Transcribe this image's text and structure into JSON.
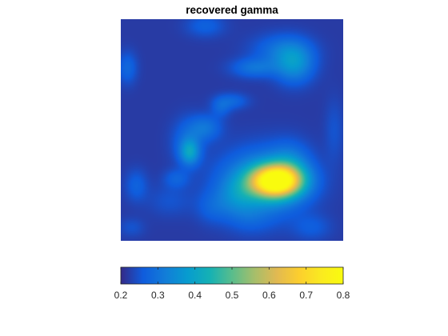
{
  "chart_data": {
    "type": "heatmap",
    "title": "recovered gamma",
    "xlabel": "",
    "ylabel": "",
    "axes_visible": false,
    "colormap": "parula",
    "clim": [
      0.2,
      0.8
    ],
    "grid": false,
    "colorbar": {
      "placement": "bottom",
      "ticks": [
        0.2,
        0.3,
        0.4,
        0.5,
        0.6,
        0.7,
        0.8
      ],
      "tick_labels": [
        "0.2",
        "0.3",
        "0.4",
        "0.5",
        "0.6",
        "0.7",
        "0.8"
      ]
    },
    "background_level": 0.22,
    "features": [
      {
        "x": 0.7,
        "y": 0.27,
        "sx": 0.08,
        "sy": 0.05,
        "amp": 0.56
      },
      {
        "x": 0.64,
        "y": 0.26,
        "sx": 0.13,
        "sy": 0.1,
        "amp": 0.16
      },
      {
        "x": 0.76,
        "y": 0.34,
        "sx": 0.06,
        "sy": 0.07,
        "amp": 0.08
      },
      {
        "x": 0.52,
        "y": 0.2,
        "sx": 0.06,
        "sy": 0.06,
        "amp": 0.07
      },
      {
        "x": 0.31,
        "y": 0.4,
        "sx": 0.03,
        "sy": 0.04,
        "amp": 0.15
      },
      {
        "x": 0.3,
        "y": 0.45,
        "sx": 0.05,
        "sy": 0.07,
        "amp": 0.06
      },
      {
        "x": 0.78,
        "y": 0.8,
        "sx": 0.06,
        "sy": 0.06,
        "amp": 0.14
      },
      {
        "x": 0.72,
        "y": 0.86,
        "sx": 0.09,
        "sy": 0.05,
        "amp": 0.07
      },
      {
        "x": 0.6,
        "y": 0.78,
        "sx": 0.07,
        "sy": 0.03,
        "amp": 0.08
      },
      {
        "x": 0.5,
        "y": 0.63,
        "sx": 0.05,
        "sy": 0.025,
        "amp": 0.06
      },
      {
        "x": 0.45,
        "y": 0.6,
        "sx": 0.03,
        "sy": 0.03,
        "amp": 0.05
      },
      {
        "x": 0.38,
        "y": 0.51,
        "sx": 0.05,
        "sy": 0.04,
        "amp": 0.08
      },
      {
        "x": 0.25,
        "y": 0.28,
        "sx": 0.04,
        "sy": 0.03,
        "amp": 0.05
      },
      {
        "x": 0.22,
        "y": 0.18,
        "sx": 0.07,
        "sy": 0.05,
        "amp": 0.03
      },
      {
        "x": 0.41,
        "y": 0.15,
        "sx": 0.05,
        "sy": 0.05,
        "amp": 0.04
      },
      {
        "x": 0.58,
        "y": 0.1,
        "sx": 0.07,
        "sy": 0.05,
        "amp": 0.03
      },
      {
        "x": 0.07,
        "y": 0.25,
        "sx": 0.035,
        "sy": 0.05,
        "amp": 0.05
      },
      {
        "x": 0.03,
        "y": 0.78,
        "sx": 0.03,
        "sy": 0.05,
        "amp": 0.06
      },
      {
        "x": 0.38,
        "y": 0.97,
        "sx": 0.06,
        "sy": 0.035,
        "amp": 0.05
      },
      {
        "x": 0.86,
        "y": 0.06,
        "sx": 0.06,
        "sy": 0.04,
        "amp": 0.04
      },
      {
        "x": 0.05,
        "y": 0.06,
        "sx": 0.04,
        "sy": 0.03,
        "amp": 0.03
      },
      {
        "x": 0.96,
        "y": 0.5,
        "sx": 0.03,
        "sy": 0.1,
        "amp": 0.03
      }
    ]
  }
}
